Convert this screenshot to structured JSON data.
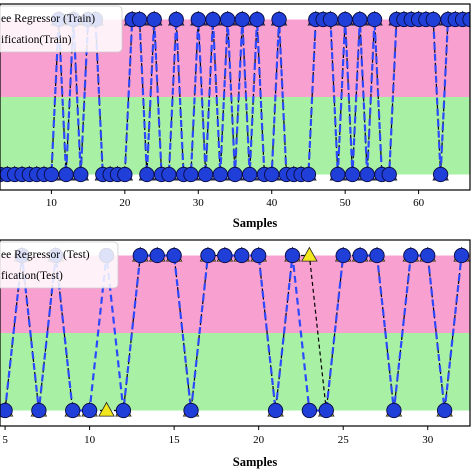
{
  "chart_data": [
    {
      "type": "line",
      "panel": "train",
      "xlabel": "Samples",
      "x_ticks": [
        10,
        20,
        30,
        40,
        50,
        60
      ],
      "xlim": [
        3,
        67
      ],
      "ylim": [
        -0.2,
        2.2
      ],
      "bands": [
        {
          "from": 1,
          "to": 2,
          "color": "#f8a0cf"
        },
        {
          "from": 0,
          "to": 1,
          "color": "#a8f0a4"
        }
      ],
      "legend": [
        {
          "label": "ee Regressor (Train)",
          "line_color": "#1f3cff",
          "marker": "circle"
        },
        {
          "label": "ification(Train)",
          "line_color": "#000000",
          "marker": "triangle"
        }
      ],
      "series": [
        {
          "marker_color": "#1f3fd8",
          "line_color": "#2d49ff",
          "style": "dashed",
          "x": [
            3,
            4,
            5,
            6,
            7,
            8,
            9,
            10,
            11,
            12,
            13,
            14,
            15,
            16,
            17,
            18,
            19,
            20,
            21,
            22,
            23,
            24,
            25,
            26,
            27,
            28,
            29,
            30,
            31,
            32,
            33,
            34,
            35,
            36,
            37,
            38,
            39,
            40,
            41,
            42,
            43,
            44,
            45,
            46,
            47,
            48,
            49,
            50,
            51,
            52,
            53,
            54,
            55,
            56,
            57,
            58,
            59,
            60,
            61,
            62,
            63,
            64,
            65,
            66,
            67
          ],
          "y": [
            0,
            0,
            0,
            0,
            0,
            0,
            0,
            0,
            2,
            0,
            2,
            0,
            2,
            2,
            0,
            0,
            0,
            0,
            2,
            2,
            0,
            2,
            0,
            0,
            2,
            0,
            0,
            2,
            0,
            2,
            0,
            2,
            0,
            2,
            0,
            2,
            0,
            0,
            2,
            0,
            0,
            0,
            0,
            2,
            2,
            2,
            0,
            2,
            0,
            2,
            0,
            2,
            0,
            0,
            2,
            2,
            2,
            2,
            2,
            2,
            0,
            2,
            2,
            2,
            2
          ]
        },
        {
          "marker_color": "#1f3fd8",
          "line_color": "#000000",
          "style": "dashed",
          "x": [
            3,
            4,
            5,
            6,
            7,
            8,
            9,
            10,
            11,
            12,
            13,
            14,
            15,
            16,
            17,
            18,
            19,
            20,
            21,
            22,
            23,
            24,
            25,
            26,
            27,
            28,
            29,
            30,
            31,
            32,
            33,
            34,
            35,
            36,
            37,
            38,
            39,
            40,
            41,
            42,
            43,
            44,
            45,
            46,
            47,
            48,
            49,
            50,
            51,
            52,
            53,
            54,
            55,
            56,
            57,
            58,
            59,
            60,
            61,
            62,
            63,
            64,
            65,
            66,
            67
          ],
          "y": [
            0,
            0,
            0,
            0,
            0,
            0,
            0,
            0,
            2,
            0,
            2,
            0,
            2,
            2,
            0,
            0,
            0,
            0,
            2,
            2,
            0,
            2,
            0,
            0,
            2,
            0,
            0,
            2,
            0,
            2,
            0,
            2,
            0,
            2,
            0,
            2,
            0,
            0,
            2,
            0,
            0,
            0,
            0,
            2,
            2,
            2,
            0,
            2,
            0,
            2,
            0,
            2,
            0,
            0,
            2,
            2,
            2,
            2,
            2,
            2,
            0,
            2,
            2,
            2,
            2
          ]
        }
      ]
    },
    {
      "type": "line",
      "panel": "test",
      "xlabel": "Samples",
      "x_ticks": [
        5,
        10,
        15,
        20,
        25,
        30
      ],
      "xlim": [
        4.7,
        32.5
      ],
      "ylim": [
        -0.2,
        2.2
      ],
      "bands": [
        {
          "from": 1,
          "to": 2,
          "color": "#f8a0cf"
        },
        {
          "from": 0,
          "to": 1,
          "color": "#a8f0a4"
        }
      ],
      "legend": [
        {
          "label": "ee Regressor (Test)",
          "line_color": "#1f3cff",
          "marker": "circle"
        },
        {
          "label": "fication(Test)",
          "line_color": "#000000",
          "marker": "triangle"
        }
      ],
      "series": [
        {
          "marker_color": "#1f3fd8",
          "line_color": "#2d49ff",
          "style": "dashed",
          "x": [
            5,
            6,
            7,
            8,
            9,
            10,
            11,
            12,
            13,
            14,
            15,
            16,
            17,
            18,
            19,
            20,
            21,
            22,
            23,
            24,
            25,
            26,
            27,
            28,
            29,
            30,
            31,
            32
          ],
          "y": [
            0,
            2,
            0,
            2,
            0,
            0,
            2,
            0,
            2,
            2,
            2,
            0,
            2,
            2,
            2,
            2,
            0,
            2,
            0,
            0,
            2,
            2,
            2,
            0,
            2,
            2,
            0,
            2
          ]
        },
        {
          "marker_color": "#f2e61c",
          "line_color": "#000000",
          "style": "dashed",
          "x": [
            5,
            6,
            7,
            8,
            9,
            10,
            11,
            12,
            13,
            14,
            15,
            16,
            17,
            18,
            19,
            20,
            21,
            22,
            23,
            24,
            25,
            26,
            27,
            28,
            29,
            30,
            31,
            32
          ],
          "y": [
            0,
            2,
            0,
            2,
            0,
            0,
            0,
            0,
            2,
            2,
            2,
            0,
            2,
            2,
            2,
            2,
            0,
            2,
            2,
            0,
            2,
            2,
            2,
            0,
            2,
            2,
            0,
            2
          ]
        }
      ]
    }
  ]
}
